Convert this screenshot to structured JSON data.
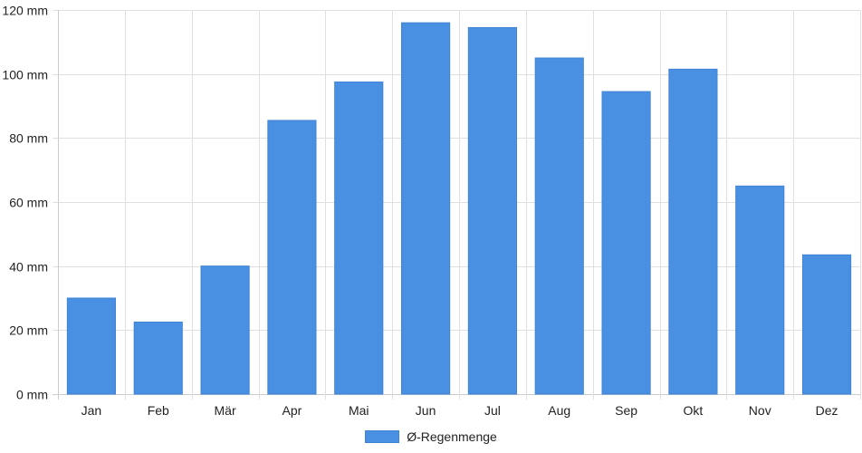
{
  "chart_data": {
    "type": "bar",
    "categories": [
      "Jan",
      "Feb",
      "Mär",
      "Apr",
      "Mai",
      "Jun",
      "Jul",
      "Aug",
      "Sep",
      "Okt",
      "Nov",
      "Dez"
    ],
    "series": [
      {
        "name": "Ø-Regenmenge",
        "values": [
          30,
          22.5,
          40,
          85.5,
          97.5,
          116,
          114.5,
          105,
          94.5,
          101.5,
          65,
          43.5
        ]
      }
    ],
    "ylim": [
      0,
      120
    ],
    "yticks": [
      0,
      20,
      40,
      60,
      80,
      100,
      120
    ],
    "ytick_labels": [
      "0 mm",
      "20 mm",
      "40 mm",
      "60 mm",
      "80 mm",
      "100 mm",
      "120 mm"
    ],
    "grid": true,
    "legend_position": "bottom-center",
    "colors": {
      "bar": "#4a90e2",
      "bar_border": "#3f84d6",
      "grid": "#e0e0e0",
      "axis": "#cccccc"
    }
  }
}
